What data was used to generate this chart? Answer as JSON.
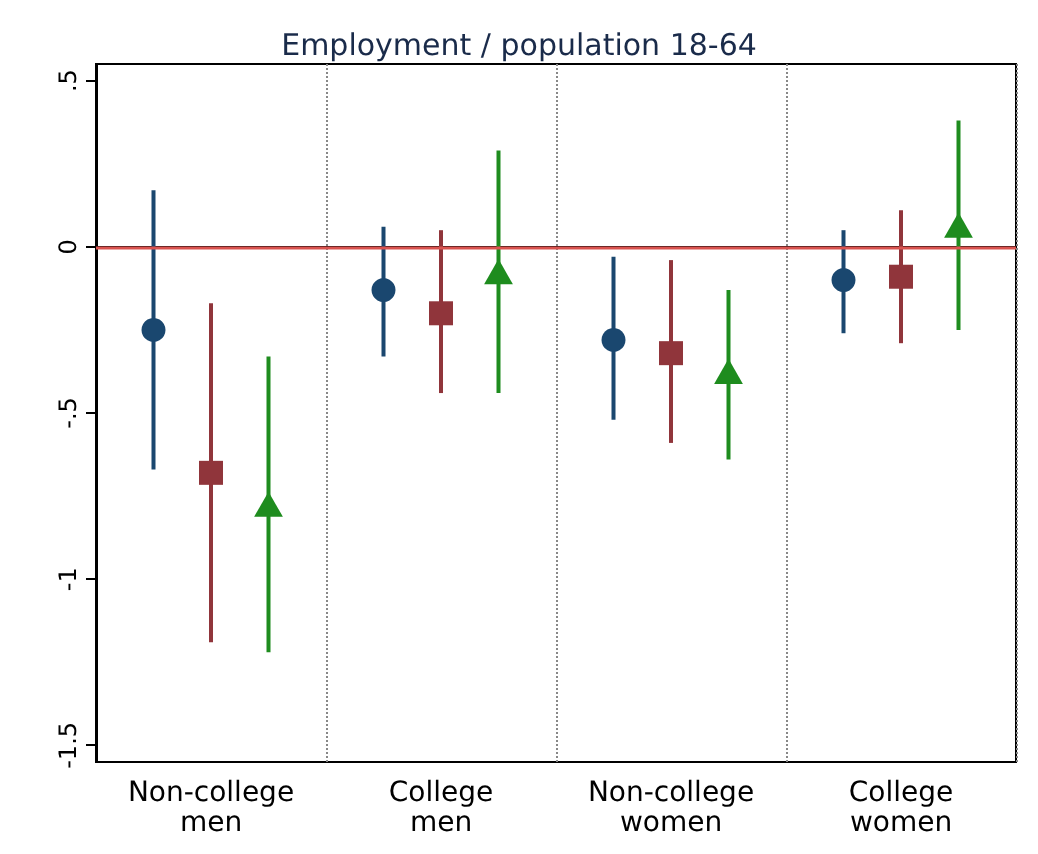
{
  "chart_data": {
    "type": "scatter",
    "title": "Employment / population 18-64",
    "categories": [
      "Non-college\nmen",
      "College\nmen",
      "Non-college\nwomen",
      "College\nwomen"
    ],
    "series": [
      {
        "color": "#1a476f",
        "marker": "circle",
        "values": [
          -0.25,
          -0.13,
          -0.28,
          -0.1
        ],
        "errors": [
          [
            -0.67,
            0.17
          ],
          [
            -0.33,
            0.06
          ],
          [
            -0.52,
            -0.03
          ],
          [
            -0.26,
            0.05
          ]
        ]
      },
      {
        "color": "#90353b",
        "marker": "square",
        "values": [
          -0.68,
          -0.2,
          -0.32,
          -0.09
        ],
        "errors": [
          [
            -1.19,
            -0.17
          ],
          [
            -0.44,
            0.05
          ],
          [
            -0.59,
            -0.04
          ],
          [
            -0.29,
            0.11
          ]
        ]
      },
      {
        "color": "#1e8c1e",
        "marker": "triangle",
        "values": [
          -0.78,
          -0.08,
          -0.38,
          0.06
        ],
        "errors": [
          [
            -1.22,
            -0.33
          ],
          [
            -0.44,
            0.29
          ],
          [
            -0.64,
            -0.13
          ],
          [
            -0.25,
            0.38
          ]
        ]
      }
    ],
    "ylim": [
      -1.55,
      0.55
    ],
    "yticks": [
      {
        "value": 0.5,
        "label": ".5"
      },
      0,
      {
        "value": -0.5,
        "label": "-.5"
      },
      -1,
      -1.5
    ],
    "ref_lines": [
      {
        "axis": "y",
        "value": 0,
        "color": "#d9534f"
      }
    ],
    "grid": "x"
  }
}
